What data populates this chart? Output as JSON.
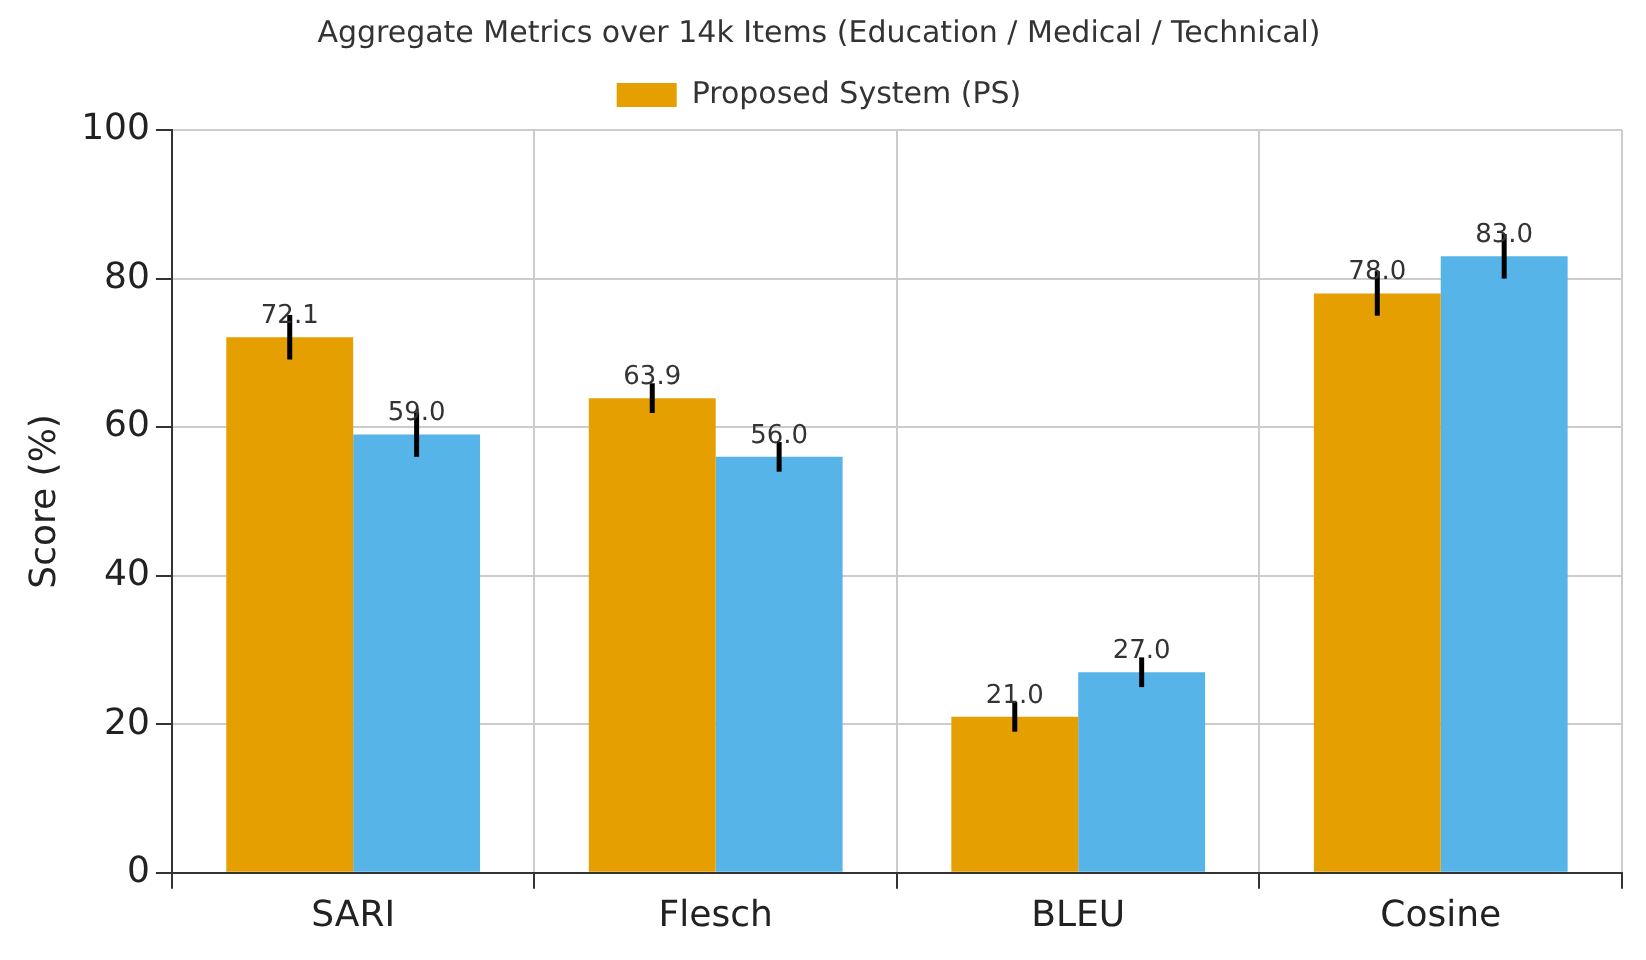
{
  "chart_data": {
    "type": "bar",
    "title": "Aggregate Metrics over 14k Items (Education / Medical / Technical)",
    "ylabel": "Score (%)",
    "categories": [
      "SARI",
      "Flesch",
      "BLEU",
      "Cosine"
    ],
    "series": [
      {
        "name": "Proposed System (PS)",
        "color": "#e69f00",
        "values": [
          72.1,
          63.9,
          21.0,
          78.0
        ],
        "errors": [
          3,
          2,
          2,
          3
        ],
        "value_labels": [
          "72.1",
          "63.9",
          "21.0",
          "78.0"
        ]
      },
      {
        "color": "#56b4e9",
        "values": [
          59.0,
          56.0,
          27.0,
          83.0
        ],
        "errors": [
          3,
          2,
          2,
          3
        ],
        "value_labels": [
          "59.0",
          "56.0",
          "27.0",
          "83.0"
        ]
      }
    ],
    "ylim": [
      0,
      100
    ],
    "yticks": [
      0,
      20,
      40,
      60,
      80,
      100
    ],
    "grid": true,
    "legend": "top"
  }
}
